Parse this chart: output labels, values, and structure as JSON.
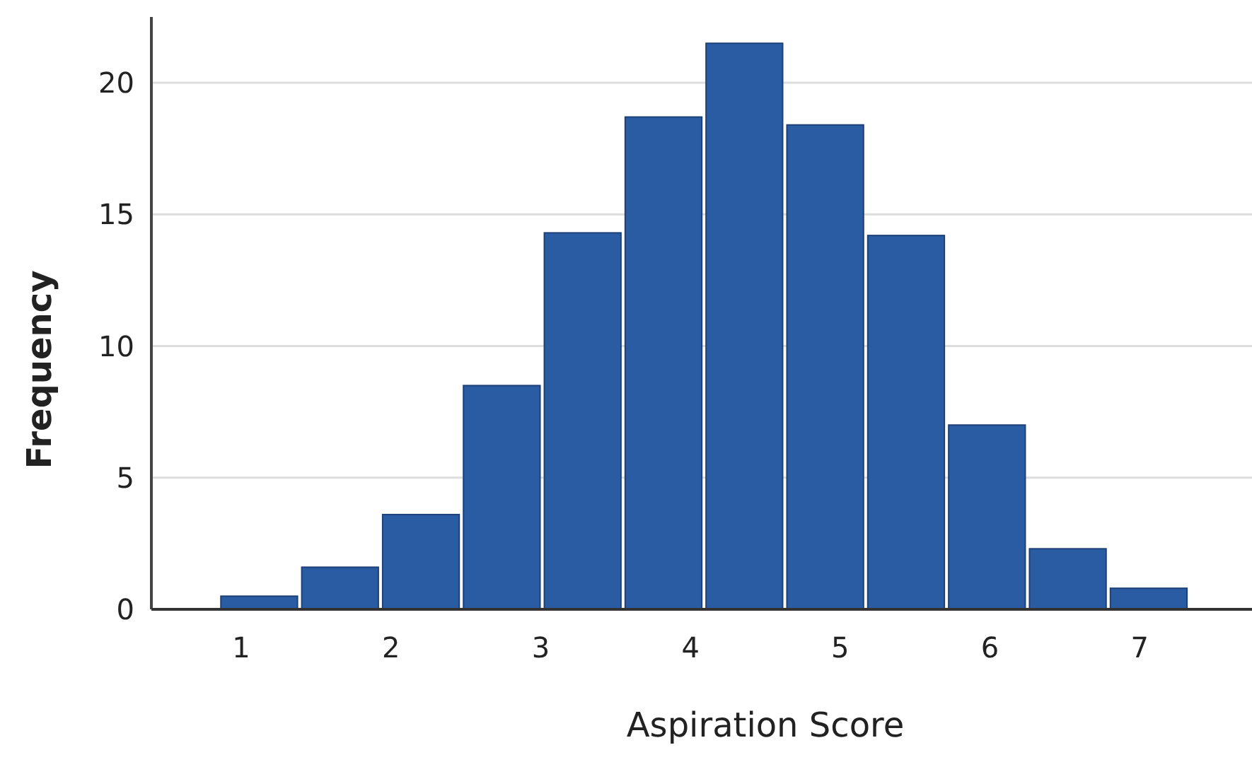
{
  "chart_data": {
    "type": "histogram",
    "xlabel": "Aspiration Score",
    "ylabel": "Frequency",
    "bins": [
      0.85,
      1.39,
      1.93,
      2.47,
      3.01,
      3.55,
      4.09,
      4.63,
      5.17,
      5.71,
      6.25,
      6.79,
      7.33
    ],
    "values": [
      0.5,
      1.6,
      3.6,
      8.5,
      14.3,
      18.7,
      21.5,
      18.4,
      14.2,
      7.0,
      2.3,
      0.8
    ],
    "color": "#2a5ca3",
    "xlim": [
      0.4,
      7.75
    ],
    "xticks": [
      1,
      2,
      3,
      4,
      5,
      6,
      7
    ],
    "ylim": [
      0,
      22.5
    ],
    "yticks": [
      0,
      5,
      10,
      15,
      20
    ],
    "grid": "y"
  }
}
